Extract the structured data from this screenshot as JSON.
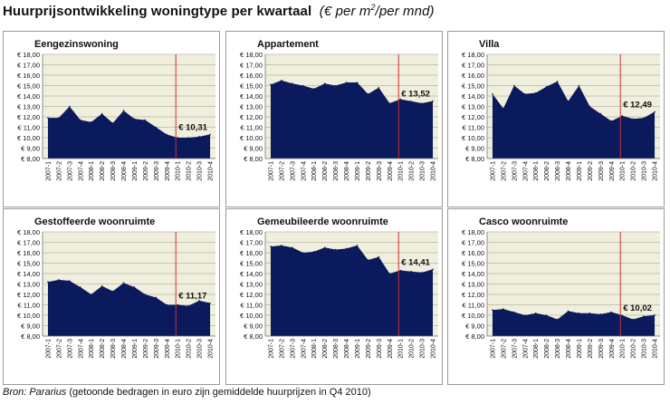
{
  "header": {
    "title": "Huurprijsontwikkeling woningtype per kwartaal",
    "subtitle_prefix": "(€ per m",
    "subtitle_sup": "2",
    "subtitle_suffix": "/per mnd)"
  },
  "footer": {
    "source_label": "Bron: Pararius",
    "source_note": " (getoonde bedragen in euro zijn gemiddelde huurprijzen in Q4 2010)"
  },
  "colors": {
    "fill": "#0a1a5c",
    "plot_bg": "#f0eedc",
    "marker_line": "#d03030",
    "grid": "#b8b6a6"
  },
  "chart_data": [
    {
      "type": "area",
      "title": "Eengezinswoning",
      "categories": [
        "2007-1",
        "2007-2",
        "2007-3",
        "2007-4",
        "2008-1",
        "2008-2",
        "2008-3",
        "2008-4",
        "2009-1",
        "2009-2",
        "2009-3",
        "2009-4",
        "2010-1",
        "2010-2",
        "2010-3",
        "2010-4"
      ],
      "values": [
        11.9,
        11.9,
        13.0,
        11.7,
        11.5,
        12.3,
        11.4,
        12.6,
        11.8,
        11.7,
        11.0,
        10.3,
        10.0,
        10.0,
        10.1,
        10.31
      ],
      "ylim": [
        8,
        18
      ],
      "yticks": [
        "€ 8,00",
        "€ 9,00",
        "€ 10,00",
        "€ 11,00",
        "€ 12,00",
        "€ 13,00",
        "€ 14,00",
        "€ 15,00",
        "€ 16,00",
        "€ 17,00",
        "€ 18,00"
      ],
      "marker_category": "2010-1",
      "annotation": "€ 10,31"
    },
    {
      "type": "area",
      "title": "Appartement",
      "categories": [
        "2007-1",
        "2007-2",
        "2007-3",
        "2007-4",
        "2008-1",
        "2008-2",
        "2008-3",
        "2008-4",
        "2009-1",
        "2009-2",
        "2009-3",
        "2009-4",
        "2010-1",
        "2010-2",
        "2010-3",
        "2010-4"
      ],
      "values": [
        15.1,
        15.5,
        15.2,
        15.0,
        14.7,
        15.2,
        15.0,
        15.3,
        15.3,
        14.2,
        14.8,
        13.3,
        13.7,
        13.5,
        13.3,
        13.52
      ],
      "ylim": [
        8,
        18
      ],
      "yticks": [
        "€ 8,00",
        "€ 9,00",
        "€ 10,00",
        "€ 11,00",
        "€ 12,00",
        "€ 13,00",
        "€ 14,00",
        "€ 15,00",
        "€ 16,00",
        "€ 17,00",
        "€ 18,00"
      ],
      "marker_category": "2010-1",
      "annotation": "€ 13,52"
    },
    {
      "type": "area",
      "title": "Villa",
      "categories": [
        "2007-1",
        "2007-2",
        "2007-3",
        "2007-4",
        "2008-1",
        "2008-2",
        "2008-3",
        "2008-4",
        "2009-1",
        "2009-2",
        "2009-3",
        "2009-4",
        "2010-1",
        "2010-2",
        "2010-3",
        "2010-4"
      ],
      "values": [
        14.2,
        12.8,
        15.0,
        14.2,
        14.3,
        14.9,
        15.4,
        13.5,
        15.0,
        13.0,
        12.3,
        11.6,
        12.1,
        11.8,
        11.9,
        12.49
      ],
      "ylim": [
        8,
        18
      ],
      "yticks": [
        "€ 8,00",
        "€ 9,00",
        "€ 10,00",
        "€ 11,00",
        "€ 12,00",
        "€ 13,00",
        "€ 14,00",
        "€ 15,00",
        "€ 16,00",
        "€ 17,00",
        "€ 18,00"
      ],
      "marker_category": "2010-1",
      "annotation": "€ 12,49"
    },
    {
      "type": "area",
      "title": "Gestoffeerde woonruimte",
      "categories": [
        "2007-1",
        "2007-2",
        "2007-3",
        "2007-4",
        "2008-1",
        "2008-2",
        "2008-3",
        "2008-4",
        "2009-1",
        "2009-2",
        "2009-3",
        "2009-4",
        "2010-1",
        "2010-2",
        "2010-3",
        "2010-4"
      ],
      "values": [
        13.2,
        13.4,
        13.3,
        12.7,
        12.0,
        12.8,
        12.3,
        13.1,
        12.7,
        12.0,
        11.7,
        11.0,
        11.0,
        10.9,
        11.4,
        11.17
      ],
      "ylim": [
        8,
        18
      ],
      "yticks": [
        "€ 8,00",
        "€ 9,00",
        "€ 10,00",
        "€ 11,00",
        "€ 12,00",
        "€ 13,00",
        "€ 14,00",
        "€ 15,00",
        "€ 16,00",
        "€ 17,00",
        "€ 18,00"
      ],
      "marker_category": "2010-1",
      "annotation": "€ 11,17"
    },
    {
      "type": "area",
      "title": "Gemeubileerde woonruimte",
      "categories": [
        "2007-1",
        "2007-2",
        "2007-3",
        "2007-4",
        "2008-1",
        "2008-2",
        "2008-3",
        "2008-4",
        "2009-1",
        "2009-2",
        "2009-3",
        "2009-4",
        "2010-1",
        "2010-2",
        "2010-3",
        "2010-4"
      ],
      "values": [
        16.6,
        16.7,
        16.5,
        16.0,
        16.1,
        16.5,
        16.3,
        16.4,
        16.7,
        15.3,
        15.6,
        14.0,
        14.3,
        14.2,
        14.1,
        14.41
      ],
      "ylim": [
        8,
        18
      ],
      "yticks": [
        "€ 8,00",
        "€ 9,00",
        "€ 10,00",
        "€ 11,00",
        "€ 12,00",
        "€ 13,00",
        "€ 14,00",
        "€ 15,00",
        "€ 16,00",
        "€ 17,00",
        "€ 18,00"
      ],
      "marker_category": "2010-1",
      "annotation": "€ 14,41"
    },
    {
      "type": "area",
      "title": "Casco woonruimte",
      "categories": [
        "2007-1",
        "2007-2",
        "2007-3",
        "2007-4",
        "2008-1",
        "2008-2",
        "2008-3",
        "2008-4",
        "2009-1",
        "2009-2",
        "2009-3",
        "2009-4",
        "2010-1",
        "2010-2",
        "2010-3",
        "2010-4"
      ],
      "values": [
        10.5,
        10.6,
        10.3,
        10.0,
        10.2,
        10.0,
        9.6,
        10.4,
        10.2,
        10.2,
        10.1,
        10.3,
        10.0,
        9.6,
        9.9,
        10.02
      ],
      "ylim": [
        8,
        18
      ],
      "yticks": [
        "€ 8,00",
        "€ 9,00",
        "€ 10,00",
        "€ 11,00",
        "€ 12,00",
        "€ 13,00",
        "€ 14,00",
        "€ 15,00",
        "€ 16,00",
        "€ 17,00",
        "€ 18,00"
      ],
      "marker_category": "2010-1",
      "annotation": "€ 10,02"
    }
  ]
}
